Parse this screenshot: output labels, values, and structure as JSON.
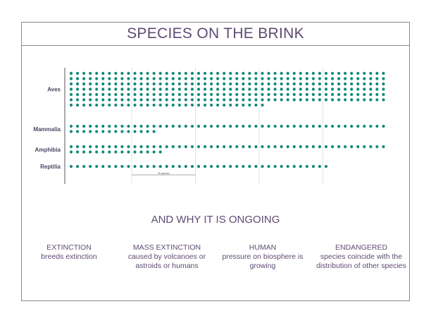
{
  "title": "SPECIES ON THE BRINK",
  "subtitle": "AND WHY IT IS ONGOING",
  "colors": {
    "dot": "#138a76",
    "title": "#5e4a72",
    "label": "#4c4464",
    "frame": "#8a8a8a",
    "gridline": "#cfcfcf"
  },
  "chart_data": {
    "type": "dot-matrix",
    "title": "SPECIES ON THE BRINK",
    "dots_per_row": 50,
    "scale_label": "25 species",
    "categories": [
      "Aves",
      "Mammalia",
      "Amphibia",
      "Reptilia"
    ],
    "values": [
      331,
      64,
      65,
      41
    ]
  },
  "reasons": [
    {
      "heading": "EXTINCTION",
      "text": "breeds extinction"
    },
    {
      "heading": "MASS EXTINCTION",
      "text": "caused by volcanoes or astroids or humans"
    },
    {
      "heading": "HUMAN",
      "text": "pressure on biosphere is growing"
    },
    {
      "heading": "ENDANGERED",
      "text": "species coincide with the distribution of other species"
    }
  ]
}
